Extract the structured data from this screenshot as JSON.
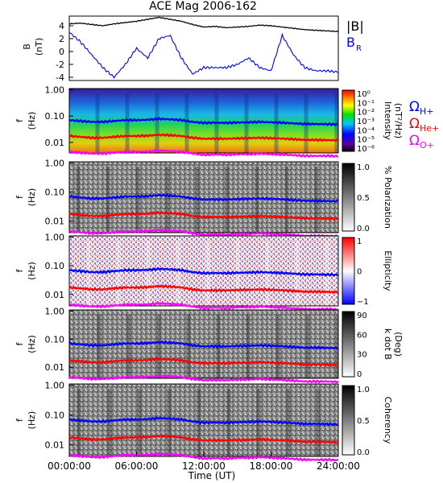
{
  "title": "ACE Mag 2006-162",
  "xlabel": "Time (UT)",
  "x_ticks": [
    "00:00:00",
    "06:00:00",
    "12:00:00",
    "18:00:00",
    "24:00:00"
  ],
  "panels": [
    {
      "id": "bfield",
      "ylabel_top": "B",
      "ylabel_bottom": "(nT)",
      "y_ticks": [
        "4",
        "2",
        "0",
        "-2",
        "-4"
      ]
    },
    {
      "id": "intensity",
      "ylabel_top": "f",
      "ylabel_bottom": "(Hz)",
      "y_ticks": [
        "1.00",
        "0.10",
        "0.01"
      ],
      "cb_label": "Intensity",
      "cb_unit": "(nT²/Hz)",
      "cb_ticks": [
        "10⁰",
        "10⁻¹",
        "10⁻²",
        "10⁻³",
        "10⁻⁴",
        "10⁻⁵",
        "10⁻⁶"
      ]
    },
    {
      "id": "polarization",
      "ylabel_top": "f",
      "ylabel_bottom": "(Hz)",
      "y_ticks": [
        "1.00",
        "0.10",
        "0.01"
      ],
      "cb_label": "% Polarization",
      "cb_ticks": [
        "1.0",
        "0.5",
        "0.0"
      ]
    },
    {
      "id": "ellipticity",
      "ylabel_top": "f",
      "ylabel_bottom": "(Hz)",
      "y_ticks": [
        "1.00",
        "0.10",
        "0.01"
      ],
      "cb_label": "Ellipticity",
      "cb_ticks": [
        "1",
        "0",
        "−1"
      ]
    },
    {
      "id": "kdotb",
      "ylabel_top": "f",
      "ylabel_bottom": "(Hz)",
      "y_ticks": [
        "1.00",
        "0.10",
        "0.01"
      ],
      "cb_label": "k dot B",
      "cb_unit": "(Deg)",
      "cb_ticks": [
        "90",
        "60",
        "30",
        "0"
      ]
    },
    {
      "id": "coherency",
      "ylabel_top": "f",
      "ylabel_bottom": "(Hz)",
      "y_ticks": [
        "1.00",
        "0.10",
        "0.01"
      ],
      "cb_label": "Coherency",
      "cb_ticks": [
        "1.0",
        "0.5",
        "0.0"
      ]
    }
  ],
  "legend_b": {
    "b_mag": "|B|",
    "b_r": "B",
    "b_r_sub": "R"
  },
  "legend_omega": [
    {
      "label": "Ω",
      "sub": "H+",
      "color": "#0000ff"
    },
    {
      "label": "Ω",
      "sub": "He+",
      "color": "#ff0000"
    },
    {
      "label": "Ω",
      "sub": "O+",
      "color": "#ff00ff"
    }
  ],
  "colors": {
    "b_mag": "#000000",
    "b_r": "#0000ff",
    "omega_h": "#0000ff",
    "omega_he": "#ff0000",
    "omega_o": "#ff00ff"
  },
  "chart_data": {
    "type": "line",
    "title": "ACE Mag 2006-162",
    "xlabel": "Time (UT)",
    "x_hours": [
      0,
      1,
      2,
      3,
      4,
      5,
      6,
      7,
      8,
      9,
      10,
      11,
      12,
      13,
      14,
      15,
      16,
      17,
      18,
      19,
      20,
      21,
      22,
      23,
      24
    ],
    "series": [
      {
        "name": "|B|",
        "panel": "bfield",
        "ylim": [
          -4.5,
          5.5
        ],
        "values": [
          4.3,
          4.4,
          4.2,
          4.0,
          4.3,
          4.5,
          4.7,
          5.0,
          5.3,
          5.0,
          4.7,
          4.2,
          3.8,
          3.9,
          3.7,
          3.8,
          3.9,
          4.1,
          4.0,
          3.8,
          3.6,
          3.4,
          3.3,
          3.2,
          3.1
        ]
      },
      {
        "name": "B_R",
        "panel": "bfield",
        "ylim": [
          -4.5,
          5.5
        ],
        "values": [
          3.0,
          1.5,
          -0.5,
          -2.5,
          -4.0,
          -2.0,
          0.5,
          -1.0,
          2.0,
          2.5,
          -1.0,
          -3.5,
          -2.5,
          -2.5,
          -2.5,
          -2.0,
          -1.0,
          -2.5,
          -3.0,
          2.5,
          -0.5,
          -2.5,
          -3.0,
          -3.0,
          -3.2
        ]
      },
      {
        "name": "Ω H+",
        "unit": "Hz",
        "ylim_log": [
          0.004,
          1.1
        ],
        "values": [
          0.07,
          0.065,
          0.06,
          0.06,
          0.065,
          0.07,
          0.07,
          0.072,
          0.078,
          0.075,
          0.07,
          0.06,
          0.055,
          0.056,
          0.055,
          0.057,
          0.058,
          0.06,
          0.058,
          0.056,
          0.053,
          0.05,
          0.05,
          0.049,
          0.048
        ]
      },
      {
        "name": "Ω He+",
        "unit": "Hz",
        "ylim_log": [
          0.004,
          1.1
        ],
        "values": [
          0.0175,
          0.0163,
          0.015,
          0.015,
          0.0163,
          0.0175,
          0.0175,
          0.018,
          0.0195,
          0.0188,
          0.0175,
          0.015,
          0.0138,
          0.014,
          0.0138,
          0.0143,
          0.0145,
          0.015,
          0.0145,
          0.014,
          0.0133,
          0.0125,
          0.0125,
          0.0123,
          0.012
        ]
      },
      {
        "name": "Ω O+",
        "unit": "Hz",
        "ylim_log": [
          0.004,
          1.1
        ],
        "values": [
          0.0044,
          0.0041,
          0.0038,
          0.0038,
          0.0041,
          0.0044,
          0.0044,
          0.0045,
          0.0049,
          0.0047,
          0.0044,
          0.0038,
          0.0034,
          0.0035,
          0.0034,
          0.0036,
          0.0036,
          0.0038,
          0.0036,
          0.0035,
          0.0033,
          0.0031,
          0.0031,
          0.0031,
          0.003
        ]
      }
    ]
  }
}
